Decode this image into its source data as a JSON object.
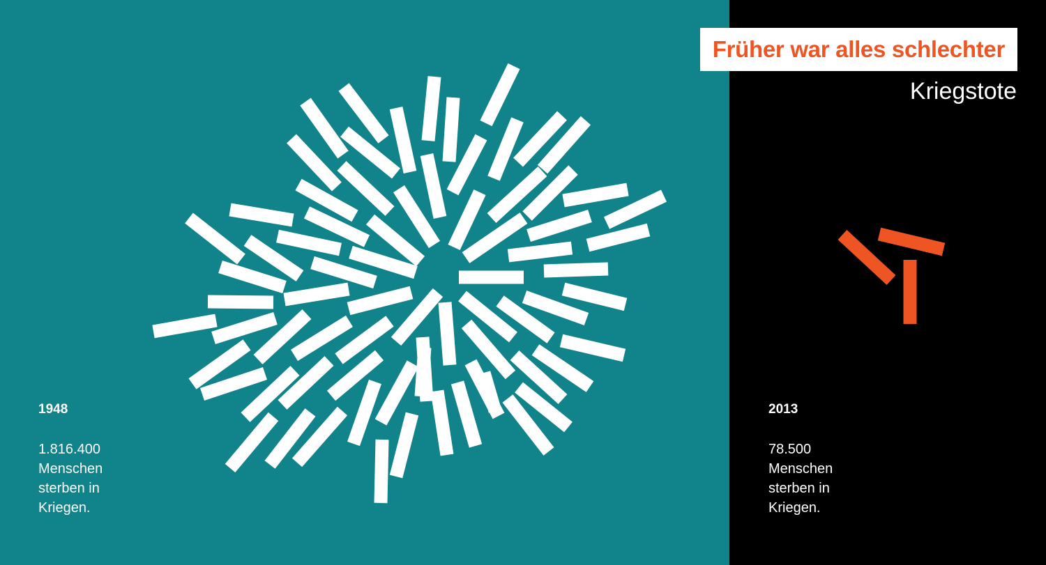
{
  "title": "Früher war alles schlechter",
  "subtitle": "Kriegstote",
  "colors": {
    "teal": "#11838a",
    "black": "#000000",
    "accent": "#ef5523",
    "white": "#ffffff"
  },
  "panels": [
    {
      "year": "1948",
      "value": "1.816.400",
      "lines": [
        "Menschen",
        "sterben in",
        "Kriegen."
      ]
    },
    {
      "year": "2013",
      "value": "78.500",
      "lines": [
        "Menschen",
        "sterben in",
        "Kriegen."
      ]
    }
  ]
}
